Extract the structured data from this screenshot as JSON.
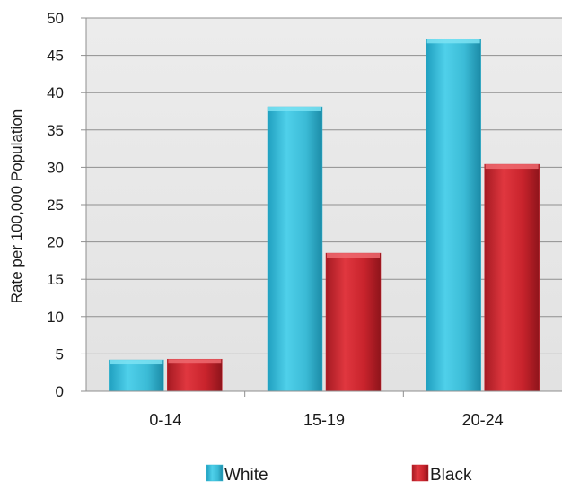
{
  "chart_data": {
    "type": "bar",
    "categories": [
      "0-14",
      "15-19",
      "20-24"
    ],
    "series": [
      {
        "name": "White",
        "values": [
          4.2,
          38.1,
          47.2
        ],
        "color": "#3bbbd6"
      },
      {
        "name": "Black",
        "values": [
          4.3,
          18.5,
          30.4
        ],
        "color": "#c8232c"
      }
    ],
    "title": "",
    "xlabel": "",
    "ylabel": "Rate per 100,000 Population",
    "ylim": [
      0,
      50
    ],
    "yticks": [
      "0",
      "5",
      "10",
      "15",
      "20",
      "25",
      "30",
      "35",
      "40",
      "45",
      "50"
    ],
    "grid": true,
    "legend_position": "bottom"
  }
}
